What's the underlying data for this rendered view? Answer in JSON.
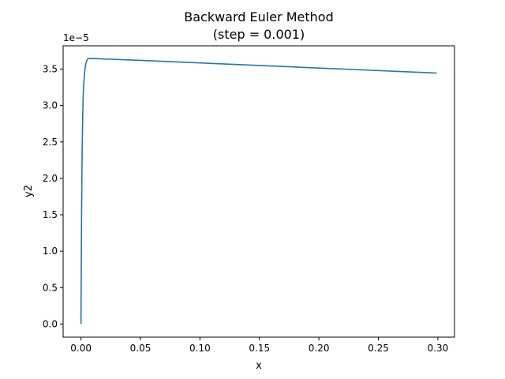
{
  "chart_data": {
    "type": "line",
    "title": "Backward Euler Method",
    "subtitle": "(step = 0.001)",
    "xlabel": "x",
    "ylabel": "y2",
    "y_multiplier_label": "1e−5",
    "xlim": [
      -0.015,
      0.314
    ],
    "ylim": [
      -0.18,
      3.82
    ],
    "x_ticks": [
      0.0,
      0.05,
      0.1,
      0.15,
      0.2,
      0.25,
      0.3
    ],
    "x_tick_labels": [
      "0.00",
      "0.05",
      "0.10",
      "0.15",
      "0.20",
      "0.25",
      "0.30"
    ],
    "y_ticks": [
      0.0,
      0.5,
      1.0,
      1.5,
      2.0,
      2.5,
      3.0,
      3.5
    ],
    "y_tick_labels": [
      "0.0",
      "0.5",
      "1.0",
      "1.5",
      "2.0",
      "2.5",
      "3.0",
      "3.5"
    ],
    "grid": false,
    "series": [
      {
        "color": "#1f77b4",
        "x": [
          0.0,
          0.0005,
          0.001,
          0.0015,
          0.002,
          0.003,
          0.004,
          0.005,
          0.006,
          0.008,
          0.01,
          0.05,
          0.1,
          0.15,
          0.2,
          0.25,
          0.299
        ],
        "y": [
          0.0,
          1.5,
          2.4,
          2.9,
          3.2,
          3.45,
          3.57,
          3.62,
          3.645,
          3.646,
          3.645,
          3.62,
          3.585,
          3.55,
          3.515,
          3.48,
          3.445
        ]
      }
    ]
  }
}
